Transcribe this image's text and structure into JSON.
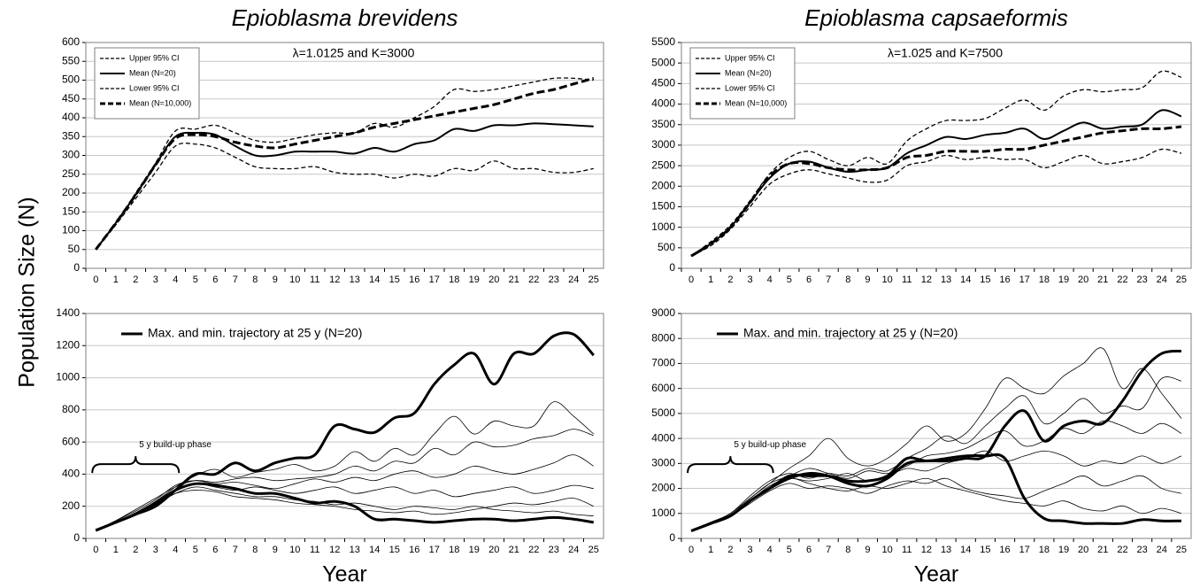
{
  "y_axis_label": "Population Size (N)",
  "chart_data": [
    {
      "type": "line",
      "title": "Epioblasma brevidens",
      "annotation": "λ=1.0125 and K=3000",
      "categories": [
        0,
        1,
        2,
        3,
        4,
        5,
        6,
        7,
        8,
        9,
        10,
        11,
        12,
        13,
        14,
        15,
        16,
        17,
        18,
        19,
        20,
        21,
        22,
        23,
        24,
        25
      ],
      "ylim": [
        0,
        600
      ],
      "yticks": [
        0,
        50,
        100,
        150,
        200,
        250,
        300,
        350,
        400,
        450,
        500,
        550,
        600
      ],
      "grid": true,
      "legend": "top-left",
      "series": [
        {
          "name": "Upper 95% CI",
          "color": "#000000",
          "dash": true,
          "width": 1.3,
          "values": [
            50,
            120,
            200,
            280,
            365,
            370,
            380,
            360,
            340,
            335,
            345,
            355,
            360,
            360,
            385,
            375,
            400,
            430,
            475,
            470,
            475,
            485,
            495,
            505,
            505,
            500
          ]
        },
        {
          "name": "Mean (N=20)",
          "color": "#000000",
          "dash": false,
          "width": 2,
          "values": [
            50,
            120,
            195,
            275,
            350,
            360,
            355,
            325,
            300,
            300,
            310,
            310,
            310,
            305,
            320,
            310,
            330,
            340,
            370,
            365,
            380,
            380,
            385,
            383,
            380,
            377
          ]
        },
        {
          "name": "Lower 95% CI",
          "color": "#000000",
          "dash": true,
          "width": 1.3,
          "values": [
            50,
            115,
            185,
            255,
            325,
            330,
            320,
            295,
            270,
            265,
            265,
            270,
            255,
            250,
            250,
            240,
            250,
            245,
            265,
            260,
            285,
            265,
            265,
            255,
            255,
            265
          ]
        },
        {
          "name": "Mean (N=10,000)",
          "color": "#000000",
          "dash": true,
          "width": 3,
          "values": [
            50,
            120,
            195,
            275,
            345,
            355,
            350,
            335,
            325,
            320,
            330,
            340,
            350,
            360,
            375,
            385,
            395,
            405,
            415,
            425,
            435,
            450,
            465,
            475,
            490,
            505
          ]
        }
      ]
    },
    {
      "type": "line",
      "title": "Epioblasma capsaeformis",
      "annotation": "λ=1.025 and K=7500",
      "categories": [
        0,
        1,
        2,
        3,
        4,
        5,
        6,
        7,
        8,
        9,
        10,
        11,
        12,
        13,
        14,
        15,
        16,
        17,
        18,
        19,
        20,
        21,
        22,
        23,
        24,
        25
      ],
      "ylim": [
        0,
        5500
      ],
      "yticks": [
        0,
        500,
        1000,
        1500,
        2000,
        2500,
        3000,
        3500,
        4000,
        4500,
        5000,
        5500
      ],
      "grid": true,
      "legend": "top-left",
      "series": [
        {
          "name": "Upper 95% CI",
          "color": "#000000",
          "dash": true,
          "width": 1.3,
          "values": [
            300,
            650,
            1050,
            1650,
            2300,
            2700,
            2850,
            2650,
            2500,
            2700,
            2550,
            3100,
            3400,
            3600,
            3600,
            3650,
            3900,
            4100,
            3850,
            4200,
            4350,
            4300,
            4350,
            4400,
            4800,
            4650
          ]
        },
        {
          "name": "Mean (N=20)",
          "color": "#000000",
          "dash": false,
          "width": 2,
          "values": [
            300,
            600,
            1000,
            1600,
            2200,
            2550,
            2600,
            2450,
            2350,
            2400,
            2450,
            2800,
            3000,
            3200,
            3150,
            3250,
            3300,
            3400,
            3150,
            3350,
            3550,
            3400,
            3450,
            3500,
            3850,
            3700
          ]
        },
        {
          "name": "Lower 95% CI",
          "color": "#000000",
          "dash": true,
          "width": 1.3,
          "values": [
            300,
            550,
            950,
            1500,
            2050,
            2300,
            2400,
            2300,
            2200,
            2100,
            2150,
            2500,
            2600,
            2750,
            2650,
            2700,
            2650,
            2650,
            2450,
            2600,
            2750,
            2550,
            2600,
            2700,
            2900,
            2800
          ]
        },
        {
          "name": "Mean (N=10,000)",
          "color": "#000000",
          "dash": true,
          "width": 3,
          "values": [
            300,
            600,
            1000,
            1600,
            2250,
            2550,
            2550,
            2450,
            2400,
            2400,
            2450,
            2700,
            2750,
            2850,
            2850,
            2850,
            2900,
            2900,
            3000,
            3100,
            3200,
            3300,
            3350,
            3400,
            3400,
            3450
          ]
        }
      ]
    },
    {
      "type": "line",
      "xlabel": "Year",
      "annotation": "5 y build-up phase",
      "categories": [
        0,
        1,
        2,
        3,
        4,
        5,
        6,
        7,
        8,
        9,
        10,
        11,
        12,
        13,
        14,
        15,
        16,
        17,
        18,
        19,
        20,
        21,
        22,
        23,
        24,
        25
      ],
      "ylim": [
        0,
        1400
      ],
      "yticks": [
        0,
        200,
        400,
        600,
        800,
        1000,
        1200,
        1400
      ],
      "grid": true,
      "legend": "top-left",
      "series": [
        {
          "name": "Max. and min. trajectory at 25 y (N=20)",
          "color": "#000000",
          "dash": false,
          "width": 3,
          "values": [
            50,
            100,
            150,
            200,
            300,
            400,
            400,
            470,
            420,
            470,
            500,
            520,
            700,
            680,
            660,
            750,
            780,
            960,
            1080,
            1150,
            960,
            1150,
            1150,
            1260,
            1270,
            1140
          ]
        },
        {
          "color": "#000000",
          "dash": false,
          "width": 3,
          "values": [
            50,
            100,
            150,
            220,
            300,
            340,
            330,
            310,
            280,
            280,
            250,
            220,
            230,
            200,
            120,
            120,
            110,
            100,
            110,
            120,
            120,
            110,
            120,
            130,
            120,
            100
          ]
        },
        {
          "color": "#000000",
          "dash": false,
          "width": 0.8,
          "values": [
            50,
            100,
            160,
            230,
            320,
            390,
            430,
            380,
            410,
            430,
            460,
            420,
            450,
            540,
            480,
            560,
            520,
            650,
            760,
            650,
            730,
            700,
            700,
            850,
            760,
            650
          ]
        },
        {
          "color": "#000000",
          "dash": false,
          "width": 0.8,
          "values": [
            50,
            110,
            180,
            250,
            320,
            360,
            350,
            370,
            380,
            360,
            370,
            380,
            400,
            450,
            420,
            480,
            470,
            560,
            520,
            600,
            570,
            580,
            620,
            640,
            680,
            640
          ]
        },
        {
          "color": "#000000",
          "dash": false,
          "width": 0.8,
          "values": [
            50,
            100,
            150,
            210,
            280,
            320,
            300,
            280,
            260,
            260,
            240,
            230,
            210,
            220,
            200,
            180,
            200,
            190,
            180,
            200,
            180,
            170,
            160,
            170,
            150,
            140
          ]
        },
        {
          "color": "#000000",
          "dash": false,
          "width": 0.8,
          "values": [
            50,
            110,
            170,
            240,
            330,
            360,
            340,
            350,
            330,
            310,
            340,
            370,
            350,
            380,
            360,
            400,
            420,
            380,
            400,
            450,
            420,
            400,
            430,
            470,
            520,
            450
          ]
        },
        {
          "color": "#000000",
          "dash": false,
          "width": 0.8,
          "values": [
            50,
            100,
            160,
            220,
            300,
            340,
            320,
            300,
            320,
            300,
            280,
            300,
            320,
            280,
            300,
            320,
            280,
            300,
            260,
            280,
            300,
            320,
            280,
            300,
            330,
            310
          ]
        },
        {
          "color": "#000000",
          "dash": false,
          "width": 0.8,
          "values": [
            50,
            100,
            150,
            210,
            280,
            300,
            290,
            260,
            250,
            240,
            220,
            210,
            200,
            180,
            170,
            160,
            170,
            150,
            160,
            180,
            200,
            220,
            210,
            230,
            250,
            200
          ]
        }
      ]
    },
    {
      "type": "line",
      "xlabel": "Year",
      "annotation": "5 y build-up phase",
      "categories": [
        0,
        1,
        2,
        3,
        4,
        5,
        6,
        7,
        8,
        9,
        10,
        11,
        12,
        13,
        14,
        15,
        16,
        17,
        18,
        19,
        20,
        21,
        22,
        23,
        24,
        25
      ],
      "ylim": [
        0,
        9000
      ],
      "yticks": [
        0,
        1000,
        2000,
        3000,
        4000,
        5000,
        6000,
        7000,
        8000,
        9000
      ],
      "grid": true,
      "legend": "top-left",
      "series": [
        {
          "name": "Max. and min. trajectory at 25 y (N=20)",
          "color": "#000000",
          "dash": false,
          "width": 3,
          "values": [
            300,
            600,
            900,
            1500,
            2000,
            2400,
            2600,
            2500,
            2200,
            2100,
            2400,
            3000,
            3100,
            3100,
            3200,
            3300,
            4500,
            5100,
            3900,
            4500,
            4700,
            4600,
            5500,
            6700,
            7400,
            7500
          ]
        },
        {
          "color": "#000000",
          "dash": false,
          "width": 3,
          "values": [
            300,
            600,
            900,
            1500,
            2000,
            2500,
            2500,
            2500,
            2300,
            2300,
            2500,
            3200,
            3100,
            3200,
            3300,
            3300,
            3200,
            1600,
            800,
            700,
            600,
            600,
            600,
            750,
            700,
            700
          ]
        },
        {
          "color": "#000000",
          "dash": false,
          "width": 0.8,
          "values": [
            300,
            600,
            1000,
            1600,
            2200,
            2800,
            3300,
            4000,
            3200,
            2900,
            3200,
            3800,
            4500,
            3900,
            4200,
            5200,
            6400,
            6000,
            5800,
            6500,
            7000,
            7600,
            6000,
            6800,
            5800,
            4800
          ]
        },
        {
          "color": "#000000",
          "dash": false,
          "width": 0.8,
          "values": [
            300,
            650,
            1000,
            1700,
            2300,
            2600,
            2400,
            2600,
            2500,
            2800,
            2700,
            3200,
            3600,
            4100,
            3800,
            4500,
            5200,
            5700,
            4600,
            5000,
            5600,
            5000,
            5300,
            5200,
            6400,
            6300
          ]
        },
        {
          "color": "#000000",
          "dash": false,
          "width": 0.8,
          "values": [
            300,
            600,
            900,
            1400,
            1900,
            2200,
            2000,
            2100,
            2000,
            1800,
            2100,
            2300,
            2200,
            2400,
            2000,
            1800,
            1700,
            1600,
            1900,
            2200,
            2500,
            2100,
            2300,
            2500,
            2000,
            1800
          ]
        },
        {
          "color": "#000000",
          "dash": false,
          "width": 0.8,
          "values": [
            300,
            600,
            950,
            1500,
            2100,
            2400,
            2300,
            2400,
            2600,
            2300,
            2500,
            2800,
            2700,
            3000,
            3200,
            3500,
            3100,
            3300,
            3500,
            3300,
            2900,
            3100,
            3000,
            3300,
            3000,
            3300
          ]
        },
        {
          "color": "#000000",
          "dash": false,
          "width": 0.8,
          "values": [
            300,
            620,
            1000,
            1600,
            2200,
            2500,
            2800,
            2600,
            2400,
            2700,
            2600,
            2900,
            3300,
            3400,
            3600,
            4000,
            4300,
            3700,
            3900,
            4400,
            4200,
            4700,
            4500,
            4200,
            4600,
            4200
          ]
        },
        {
          "color": "#000000",
          "dash": false,
          "width": 0.8,
          "values": [
            300,
            600,
            900,
            1500,
            2000,
            2400,
            2200,
            2000,
            1900,
            2100,
            2000,
            2200,
            2400,
            2100,
            1900,
            1700,
            1500,
            1400,
            1300,
            1500,
            1200,
            1100,
            1300,
            1000,
            1200,
            1000
          ]
        }
      ]
    }
  ]
}
